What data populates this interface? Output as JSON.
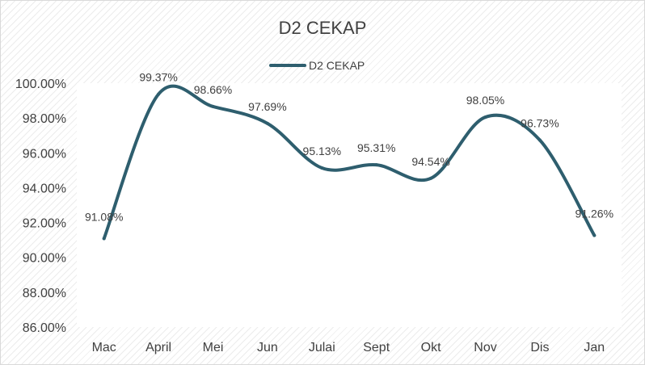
{
  "chart_data": {
    "type": "line",
    "title": "D2 CEKAP",
    "xlabel": "",
    "ylabel": "",
    "categories": [
      "Mac",
      "April",
      "Mei",
      "Jun",
      "Julai",
      "Sept",
      "Okt",
      "Nov",
      "Dis",
      "Jan"
    ],
    "series": [
      {
        "name": "D2 CEKAP",
        "values": [
          91.08,
          99.37,
          98.66,
          97.69,
          95.13,
          95.31,
          94.54,
          98.05,
          96.73,
          91.26
        ],
        "labels": [
          "91.08%",
          "99.37%",
          "98.66%",
          "97.69%",
          "95.13%",
          "95.31%",
          "94.54%",
          "98.05%",
          "96.73%",
          "91.26%"
        ],
        "color": "#2e5e6e"
      }
    ],
    "ylim": [
      86,
      100
    ],
    "yticks": [
      "86.00%",
      "88.00%",
      "90.00%",
      "92.00%",
      "94.00%",
      "96.00%",
      "98.00%",
      "100.00%"
    ],
    "legend_position": "top",
    "grid": false,
    "smooth": true
  }
}
